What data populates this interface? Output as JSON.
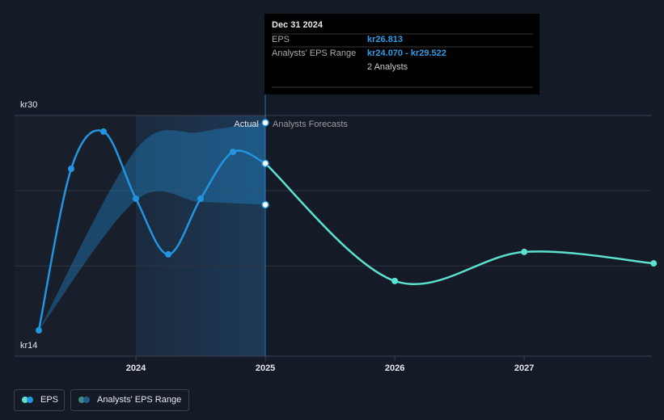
{
  "chart_data": {
    "type": "line",
    "xlim": [
      2023.0625,
      2027.98
    ],
    "xticks": [
      2024,
      2025,
      2026,
      2027
    ],
    "ylim": [
      14,
      30
    ],
    "yticks": [
      {
        "value": 14,
        "label": "kr14"
      },
      {
        "value": 30,
        "label": "kr30"
      }
    ],
    "gridlines": [
      20,
      25
    ],
    "series": [
      {
        "name": "EPS",
        "color": "#2394df",
        "x": [
          2023.25,
          2023.5,
          2023.75,
          2024.0,
          2024.25,
          2024.5,
          2024.75,
          2025.0
        ],
        "values": [
          15.72,
          26.46,
          28.93,
          24.47,
          20.77,
          24.47,
          27.58,
          26.813
        ]
      },
      {
        "color": "#5ce0cf",
        "x": [
          2025.0,
          2026.0,
          2027.0,
          2028.0
        ],
        "values": [
          26.813,
          19.0,
          20.93,
          20.17
        ]
      }
    ],
    "range": {
      "name": "Analysts' EPS Range",
      "color": "#2394df",
      "x": [
        2023.25,
        2024.0,
        2024.5,
        2025.0
      ],
      "low": [
        15.72,
        24.36,
        24.25,
        24.07
      ],
      "high": [
        15.72,
        27.74,
        28.9,
        29.522
      ]
    },
    "labels": {
      "actual": "Actual",
      "forecast": "Analysts Forecasts"
    },
    "tooltip": {
      "date": "Dec 31 2024",
      "eps_label": "EPS",
      "eps_value": "kr26.813",
      "range_label": "Analysts' EPS Range",
      "range_value": "kr24.070 - kr29.522",
      "analysts": "2 Analysts"
    }
  }
}
